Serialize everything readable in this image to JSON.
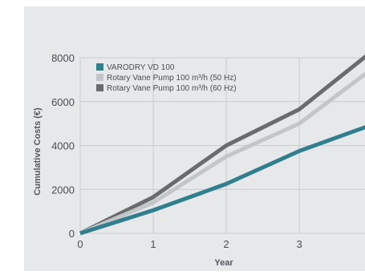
{
  "chart_data": {
    "type": "line",
    "title": "",
    "xlabel": "Year",
    "ylabel": "Cumulative Costs (€)",
    "x": [
      0,
      1,
      2,
      3,
      4
    ],
    "xticks": [
      "0",
      "1",
      "2",
      "3"
    ],
    "yticks": [
      "0",
      "2000",
      "4000",
      "6000",
      "8000"
    ],
    "xlim": [
      0,
      3.9
    ],
    "ylim": [
      0,
      8000
    ],
    "grid": true,
    "legend_position": "top-left",
    "series": [
      {
        "name": "VARODRY VD 100",
        "color": "#2f7f8e",
        "values": [
          0,
          1050,
          2250,
          3750,
          4950
        ]
      },
      {
        "name": "Rotary Vane Pump 100 m³/h (50 Hz)",
        "color": "#c3c6c9",
        "values": [
          0,
          1400,
          3500,
          5000,
          7500
        ]
      },
      {
        "name": "Rotary Vane Pump 100 m³/h (60 Hz)",
        "color": "#6a6b6d",
        "values": [
          0,
          1650,
          4000,
          5650,
          8300
        ]
      }
    ]
  }
}
